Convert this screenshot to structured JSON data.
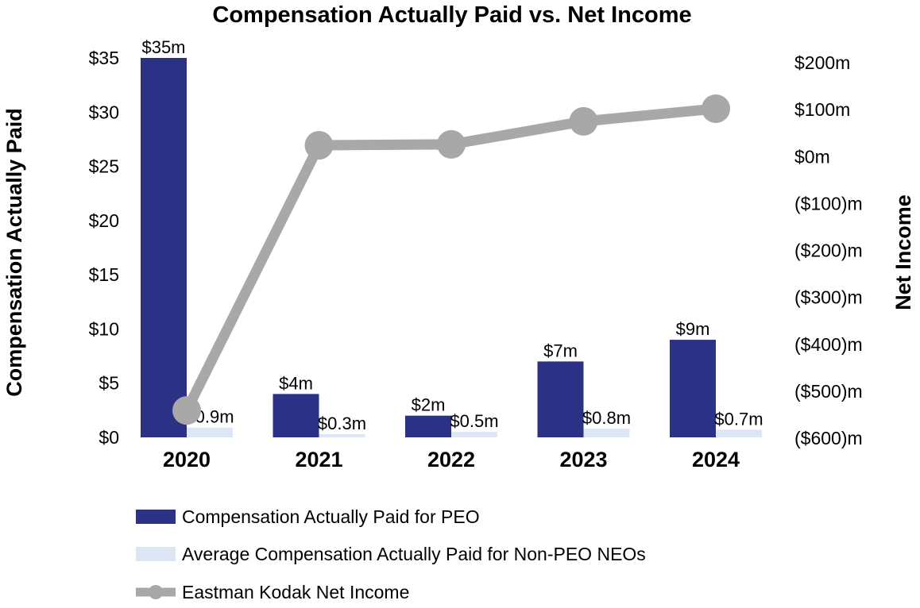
{
  "chart_data": {
    "type": "bar",
    "title": "Compensation Actually Paid vs. Net Income",
    "categories": [
      "2020",
      "2021",
      "2022",
      "2023",
      "2024"
    ],
    "ylabel": "Compensation Actually Paid",
    "y2label": "Net Income",
    "ylim": [
      0,
      35
    ],
    "y2lim": [
      -600,
      200
    ],
    "y_ticks": [
      {
        "value": 0,
        "label": "$0"
      },
      {
        "value": 5,
        "label": "$5"
      },
      {
        "value": 10,
        "label": "$10"
      },
      {
        "value": 15,
        "label": "$15"
      },
      {
        "value": 20,
        "label": "$20"
      },
      {
        "value": 25,
        "label": "$25"
      },
      {
        "value": 30,
        "label": "$30"
      },
      {
        "value": 35,
        "label": "$35"
      }
    ],
    "y2_ticks": [
      {
        "value": 200,
        "label": "$200m"
      },
      {
        "value": 100,
        "label": "$100m"
      },
      {
        "value": 0,
        "label": "$0m"
      },
      {
        "value": -100,
        "label": "($100)m"
      },
      {
        "value": -200,
        "label": "($200)m"
      },
      {
        "value": -300,
        "label": "($300)m"
      },
      {
        "value": -400,
        "label": "($400)m"
      },
      {
        "value": -500,
        "label": "($500)m"
      },
      {
        "value": -600,
        "label": "($600)m"
      }
    ],
    "grid": false,
    "legend_position": "bottom",
    "series": [
      {
        "name": "Compensation Actually Paid for PEO",
        "kind": "bar",
        "axis": "left",
        "color": "#2b3184",
        "values": [
          35,
          4,
          2,
          7,
          9
        ],
        "labels": [
          "$35m",
          "$4m",
          "$2m",
          "$7m",
          "$9m"
        ]
      },
      {
        "name": "Average Compensation Actually Paid for Non-PEO NEOs",
        "kind": "bar",
        "axis": "left",
        "color": "#dde6f4",
        "values": [
          0.9,
          0.3,
          0.5,
          0.8,
          0.7
        ],
        "labels": [
          "$0.9m",
          "$0.3m",
          "$0.5m",
          "$0.8m",
          "$0.7m"
        ]
      },
      {
        "name": "Eastman Kodak Net Income",
        "kind": "line",
        "axis": "right",
        "color": "#a8a8a8",
        "values": [
          -541,
          24,
          26,
          75,
          102
        ]
      }
    ]
  }
}
